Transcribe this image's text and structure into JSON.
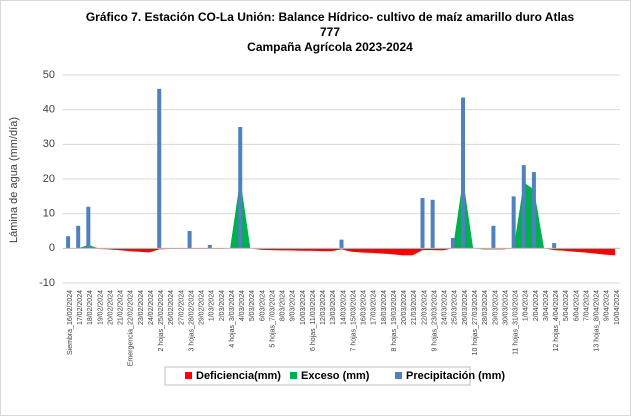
{
  "chart_data": {
    "type": "bar",
    "title": [
      "Gráfico 7. Estación CO-La Unión: Balance Hídrico- cultivo de maíz amarillo duro Atlas",
      "777",
      "Campaña Agrícola 2023-2024"
    ],
    "y_label": "Lámina de agua (mm/día)",
    "categories": [
      "Siembra_16/02/2024",
      "17/02/2024",
      "18/02/2024",
      "19/02/2024",
      "20/02/2024",
      "21/02/2024",
      "Emergencia_22/02/2024",
      "23/02/2024",
      "24/02/2024",
      "2 hojas_25/02/2024",
      "26/02/2024",
      "27/02/2024",
      "3 hojas_28/02/2024",
      "29/02/2024",
      "1/03/2024",
      "2/03/2024",
      "4 hojas_3/03/2024",
      "4/03/2024",
      "5/03/2024",
      "6/03/2024",
      "5 hojas_7/03/2024",
      "8/03/2024",
      "9/03/2024",
      "10/03/2024",
      "6 hojas_11/03/2024",
      "12/03/2024",
      "13/03/2024",
      "14/03/2024",
      "7 hojas_15/03/2024",
      "16/03/2024",
      "17/03/2024",
      "18/03/2024",
      "8 hojas_19/03/2024",
      "20/03/2024",
      "21/03/2024",
      "22/03/2024",
      "9 hojas_23/03/2024",
      "24/03/2024",
      "25/03/2024",
      "26/03/2024",
      "10 hojas_27/03/2024",
      "28/03/2024",
      "29/03/2024",
      "30/03/2024",
      "11 hojas_31/03/2024",
      "1/04/2024",
      "2/04/2024",
      "3/04/2024",
      "12 hojas_4/04/2024",
      "5/04/2024",
      "6/04/2024",
      "7/04/2024",
      "13 hojas_8/04/2024",
      "9/04/2024",
      "10/04/2024"
    ],
    "series": [
      {
        "name": "Deficiencia(mm)",
        "color": "#ff0000",
        "kind": "area",
        "values": [
          0,
          0,
          0,
          -0.2,
          -0.3,
          -0.5,
          -0.8,
          -1,
          -1.2,
          -0.3,
          -0.2,
          -0.2,
          -0.2,
          -0.2,
          -0.2,
          -0.2,
          0,
          0,
          0,
          -0.4,
          -0.5,
          -0.6,
          -0.6,
          -0.7,
          -0.7,
          -0.8,
          -0.8,
          -0.3,
          -1,
          -1.2,
          -1.3,
          -1.5,
          -1.7,
          -2,
          -2,
          -0.5,
          -0.5,
          -0.6,
          0,
          0,
          0,
          -0.3,
          -0.3,
          -0.3,
          0,
          0,
          0,
          0,
          -0.5,
          -0.7,
          -1,
          -1.2,
          -1.5,
          -1.8,
          -2
        ]
      },
      {
        "name": "Exceso (mm)",
        "color": "#00b050",
        "kind": "area",
        "values": [
          0,
          0,
          1,
          0,
          0,
          0,
          0,
          0,
          0,
          0,
          0,
          0,
          0,
          0,
          0,
          0,
          0,
          20,
          0,
          0,
          0,
          0,
          0,
          0,
          0,
          0,
          0,
          0,
          0,
          0,
          0,
          0,
          0,
          0,
          0,
          0,
          0,
          0,
          0,
          20,
          0,
          0,
          0,
          0,
          0,
          19,
          17,
          0,
          0,
          0,
          0,
          0,
          0,
          0,
          0
        ]
      },
      {
        "name": "Precipitación (mm)",
        "color": "#4f81bd",
        "kind": "bar",
        "values": [
          3.5,
          6.5,
          12,
          0,
          0,
          0,
          0,
          0,
          0,
          46,
          0,
          0,
          5,
          0,
          1,
          0,
          0,
          35,
          0,
          0,
          0,
          0,
          0,
          0,
          0,
          0,
          0,
          2.5,
          0,
          0,
          0,
          0,
          0,
          0,
          0,
          14.5,
          14,
          0,
          3,
          43.5,
          0,
          0,
          6.5,
          0,
          15,
          24,
          22,
          0,
          1.5,
          0,
          0,
          0,
          0,
          0,
          0
        ]
      }
    ],
    "ylim": [
      -10,
      50
    ],
    "yticks": [
      -10,
      0,
      10,
      20,
      30,
      40,
      50
    ],
    "grid": true,
    "legend": "bottom"
  }
}
